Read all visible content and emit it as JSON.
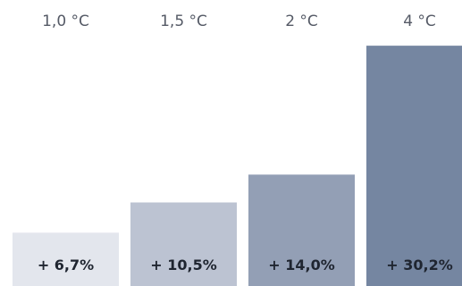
{
  "chart_data": {
    "type": "bar",
    "categories": [
      "1,0 °C",
      "1,5 °C",
      "2 °C",
      "4 °C"
    ],
    "values": [
      6.7,
      10.5,
      14.0,
      30.2
    ],
    "value_labels": [
      "+ 6,7%",
      "+ 10,5%",
      "+ 14,0%",
      "+ 30,2%"
    ],
    "ylim": [
      0,
      31
    ],
    "grid": false,
    "colors": [
      "#e3e6ed",
      "#bcc3d2",
      "#939fb5",
      "#7586a1"
    ]
  }
}
